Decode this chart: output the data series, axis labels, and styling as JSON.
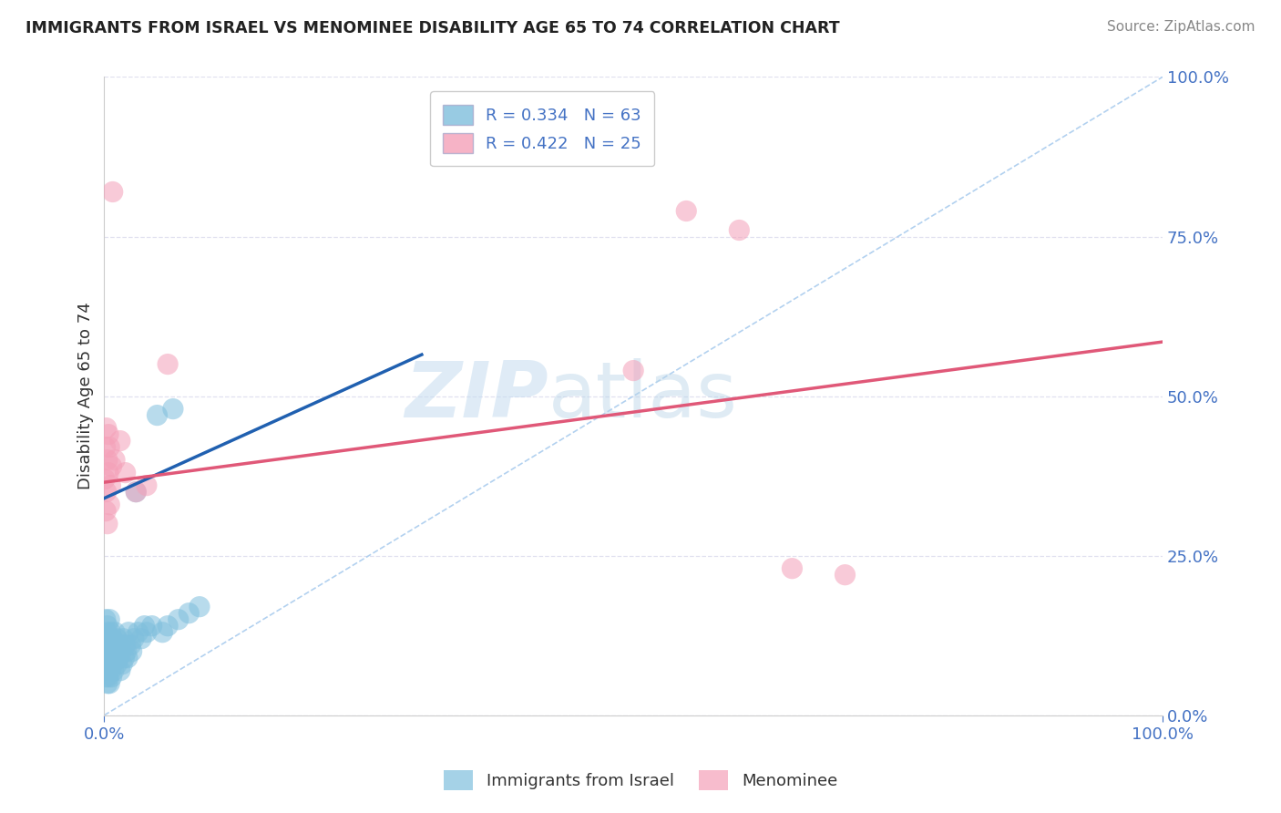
{
  "title": "IMMIGRANTS FROM ISRAEL VS MENOMINEE DISABILITY AGE 65 TO 74 CORRELATION CHART",
  "source": "Source: ZipAtlas.com",
  "ylabel": "Disability Age 65 to 74",
  "legend_bottom": [
    "Immigrants from Israel",
    "Menominee"
  ],
  "r1": 0.334,
  "n1": 63,
  "r2": 0.422,
  "n2": 25,
  "color_blue": "#7fbfdd",
  "color_pink": "#f4a0b8",
  "color_blue_line": "#2060b0",
  "color_pink_line": "#e05878",
  "color_diag": "#aaccee",
  "background": "#ffffff",
  "watermark_zip": "ZIP",
  "watermark_atlas": "atlas",
  "grid_color": "#ddddee",
  "title_color": "#222222",
  "axis_color": "#4472c4",
  "blue_dots_x": [
    0.0008,
    0.001,
    0.0012,
    0.0015,
    0.0018,
    0.002,
    0.002,
    0.0022,
    0.0025,
    0.003,
    0.003,
    0.003,
    0.0032,
    0.0035,
    0.004,
    0.004,
    0.004,
    0.0045,
    0.005,
    0.005,
    0.005,
    0.006,
    0.006,
    0.006,
    0.007,
    0.007,
    0.008,
    0.008,
    0.009,
    0.009,
    0.01,
    0.01,
    0.011,
    0.012,
    0.012,
    0.013,
    0.014,
    0.015,
    0.015,
    0.016,
    0.017,
    0.018,
    0.019,
    0.02,
    0.021,
    0.022,
    0.023,
    0.025,
    0.026,
    0.028,
    0.03,
    0.032,
    0.035,
    0.038,
    0.04,
    0.045,
    0.05,
    0.055,
    0.06,
    0.065,
    0.07,
    0.08,
    0.09
  ],
  "blue_dots_y": [
    0.12,
    0.08,
    0.15,
    0.1,
    0.07,
    0.11,
    0.06,
    0.09,
    0.13,
    0.05,
    0.08,
    0.14,
    0.1,
    0.07,
    0.06,
    0.09,
    0.12,
    0.08,
    0.05,
    0.11,
    0.15,
    0.07,
    0.1,
    0.13,
    0.06,
    0.09,
    0.08,
    0.12,
    0.07,
    0.1,
    0.09,
    0.13,
    0.11,
    0.08,
    0.12,
    0.1,
    0.09,
    0.07,
    0.11,
    0.1,
    0.08,
    0.12,
    0.09,
    0.11,
    0.1,
    0.09,
    0.13,
    0.11,
    0.1,
    0.12,
    0.35,
    0.13,
    0.12,
    0.14,
    0.13,
    0.14,
    0.47,
    0.13,
    0.14,
    0.48,
    0.15,
    0.16,
    0.17
  ],
  "pink_dots_x": [
    0.0005,
    0.001,
    0.0015,
    0.002,
    0.002,
    0.003,
    0.003,
    0.004,
    0.004,
    0.005,
    0.005,
    0.006,
    0.007,
    0.008,
    0.01,
    0.015,
    0.02,
    0.03,
    0.04,
    0.06,
    0.5,
    0.55,
    0.6,
    0.65,
    0.7
  ],
  "pink_dots_y": [
    0.37,
    0.42,
    0.32,
    0.45,
    0.35,
    0.4,
    0.3,
    0.38,
    0.44,
    0.33,
    0.42,
    0.36,
    0.39,
    0.82,
    0.4,
    0.43,
    0.38,
    0.35,
    0.36,
    0.55,
    0.54,
    0.79,
    0.76,
    0.23,
    0.22
  ],
  "blue_line": [
    0.0,
    0.34,
    0.3,
    0.565
  ],
  "pink_line": [
    0.0,
    0.365,
    1.0,
    0.585
  ],
  "xlim": [
    0.0,
    1.0
  ],
  "ylim": [
    0.0,
    1.0
  ],
  "x_ticks": [
    0.0,
    1.0
  ],
  "y_ticks": [
    0.0,
    0.25,
    0.5,
    0.75,
    1.0
  ]
}
